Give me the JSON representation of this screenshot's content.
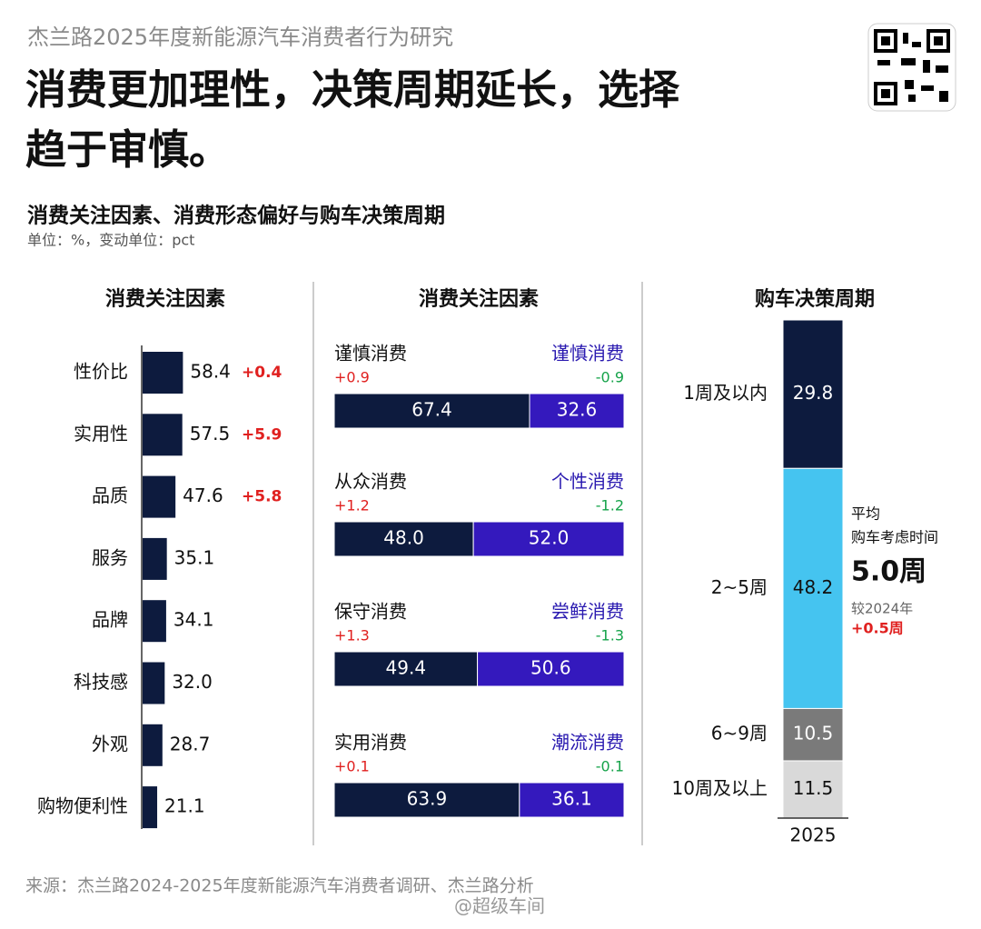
{
  "header": {
    "brand": "杰兰路2025年度新能源汽车消费者行为研究",
    "title_lines": [
      "消费更加理性，决策周期延长，选择",
      "趋于审慎。"
    ],
    "subtitle": "消费关注因素、消费形态偏好与购车决策周期",
    "unit": "单位：%，变动单位：pct"
  },
  "chart_data": [
    {
      "type": "bar",
      "orientation": "horizontal",
      "title": "消费关注因素",
      "color": "#0d1b3e",
      "categories": [
        "性价比",
        "实用性",
        "品质",
        "服务",
        "品牌",
        "科技感",
        "外观",
        "购物便利性"
      ],
      "values": [
        58.4,
        57.5,
        47.6,
        35.1,
        34.1,
        32.0,
        28.7,
        21.1
      ],
      "value_labels": [
        "58.4",
        "57.5",
        "47.6",
        "35.1",
        "34.1",
        "32.0",
        "28.7",
        "21.1"
      ],
      "changes": [
        {
          "value": 0.4,
          "label": "+0.4"
        },
        {
          "value": 5.9,
          "label": "+5.9"
        },
        {
          "value": 5.8,
          "label": "+5.8"
        },
        null,
        null,
        null,
        null,
        null
      ],
      "change_color": "#e0201f"
    },
    {
      "type": "stacked_bar",
      "title": "消费关注因素",
      "colors": [
        "#0d1b3e",
        "#3419bd"
      ],
      "label_colors": [
        "#111111",
        "#2a1ab0"
      ],
      "up_color": "#e0201f",
      "down_color": "#16a34a",
      "rows": [
        {
          "labels": [
            "谨慎消费",
            "谨慎消费"
          ],
          "changes": [
            {
              "value": 0.9,
              "label": "+0.9"
            },
            -0.9
          ],
          "values": [
            67.4,
            32.6
          ],
          "value_labels": [
            "67.4",
            "32.6"
          ]
        },
        {
          "labels": [
            "从众消费",
            "个性消费"
          ],
          "changes": [
            {
              "value": 1.2,
              "label": "+1.2"
            },
            -1.2
          ],
          "values": [
            48.0,
            52.0
          ],
          "value_labels": [
            "48.0",
            "52.0"
          ]
        },
        {
          "labels": [
            "保守消费",
            "尝鲜消费"
          ],
          "changes": [
            {
              "value": 1.3,
              "label": "+1.3"
            },
            -1.3
          ],
          "values": [
            49.4,
            50.6
          ],
          "value_labels": [
            "49.4",
            "50.6"
          ]
        },
        {
          "labels": [
            "实用消费",
            "潮流消费"
          ],
          "changes": [
            {
              "value": 0.1,
              "label": "+0.1"
            },
            -0.1
          ],
          "values": [
            63.9,
            36.1
          ],
          "value_labels": [
            "63.9",
            "36.1"
          ]
        }
      ]
    },
    {
      "type": "stacked_column",
      "title": "购车决策周期",
      "x": "2025",
      "categories": [
        "1周及以内",
        "2~5周",
        "6~9周",
        "10周及以上"
      ],
      "values": [
        29.8,
        48.2,
        10.5,
        11.5
      ],
      "colors": [
        "#0d1b3e",
        "#45c4f0",
        "#7a7a7a",
        "#d9d9d9"
      ],
      "annotation": {
        "lines": [
          "平均",
          "购车考虑时间"
        ],
        "highlight": "5.0周",
        "compare": "较2024年",
        "change": "+0.5周",
        "change_color": "#e0201f"
      }
    }
  ],
  "footer": {
    "source": "来源：杰兰路2024-2025年度新能源汽车消费者调研、杰兰路分析",
    "watermark": "@超级车间"
  }
}
